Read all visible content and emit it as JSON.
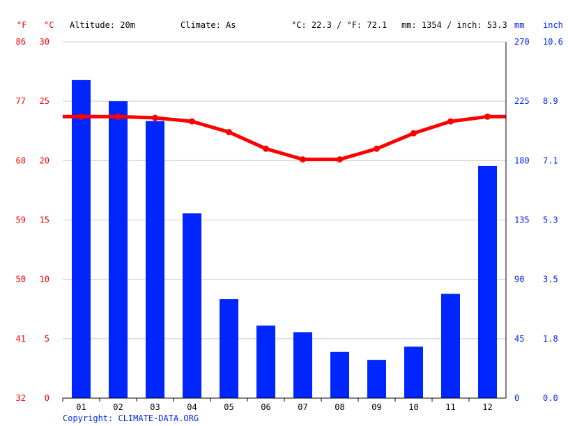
{
  "header": {
    "unit_f": "°F",
    "unit_c": "°C",
    "altitude": "Altitude: 20m",
    "climate": "Climate: As",
    "avg_temp": "°C: 22.3 / °F: 72.1",
    "precip_total": "mm: 1354 / inch: 53.3",
    "unit_mm": "mm",
    "unit_inch": "inch"
  },
  "copyright": "Copyright: CLIMATE-DATA.ORG",
  "colors": {
    "temperature": "#ff0000",
    "precipitation": "#0026ff",
    "grid": "#cccccc"
  },
  "chart_data": {
    "type": "bar+line",
    "categories": [
      "01",
      "02",
      "03",
      "04",
      "05",
      "06",
      "07",
      "08",
      "09",
      "10",
      "11",
      "12"
    ],
    "series": [
      {
        "type": "bar",
        "unit": "mm",
        "values": [
          241,
          225,
          210,
          140,
          75,
          55,
          50,
          35,
          29,
          39,
          79,
          176
        ]
      },
      {
        "type": "line",
        "unit": "°C",
        "values": [
          23.7,
          23.7,
          23.6,
          23.3,
          22.4,
          21.0,
          20.1,
          20.1,
          21.0,
          22.3,
          23.3,
          23.7
        ]
      }
    ],
    "y_left_c": {
      "range": [
        0,
        30
      ],
      "ticks": [
        "0",
        "5",
        "10",
        "15",
        "20",
        "25",
        "30"
      ]
    },
    "y_left_f": {
      "ticks": [
        "32",
        "41",
        "50",
        "59",
        "68",
        "77",
        "86"
      ]
    },
    "y_right_mm": {
      "range": [
        0,
        270
      ],
      "ticks": [
        "0",
        "45",
        "90",
        "135",
        "180",
        "225",
        "270"
      ]
    },
    "y_right_inch": {
      "ticks": [
        "0.0",
        "1.8",
        "3.5",
        "5.3",
        "7.1",
        "8.9",
        "10.6"
      ]
    },
    "grid": true
  }
}
